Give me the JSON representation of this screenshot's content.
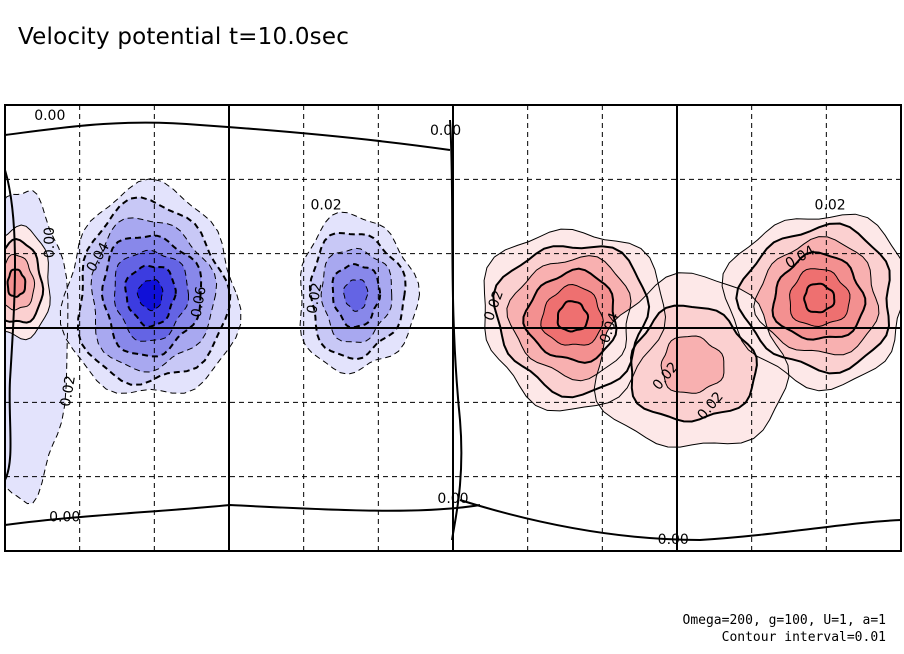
{
  "chart_data": {
    "type": "contour",
    "title": "Velocity potential t=10.0sec",
    "params_text": "Omega=200, g=100, U=1, a=1",
    "interval_text": "Contour interval=0.01",
    "contour_interval": 0.01,
    "grid": true,
    "x_divisions": 12,
    "y_divisions": 6,
    "major_x_lines": [
      3,
      6,
      9
    ],
    "major_y_lines": [
      3
    ],
    "contour_labels": [
      {
        "text": "0.00",
        "x": 0.6,
        "y": 0.15,
        "rot": 0
      },
      {
        "text": "0.00",
        "x": 5.9,
        "y": 0.35,
        "rot": 0
      },
      {
        "text": "0.02",
        "x": 4.3,
        "y": 1.35,
        "rot": 0
      },
      {
        "text": "0.00",
        "x": 0.6,
        "y": 1.85,
        "rot": -90
      },
      {
        "text": "0.04",
        "x": 1.25,
        "y": 2.05,
        "rot": -60
      },
      {
        "text": "0.06",
        "x": 2.6,
        "y": 2.65,
        "rot": -80
      },
      {
        "text": "0.02",
        "x": 4.15,
        "y": 2.6,
        "rot": -80
      },
      {
        "text": "0.02",
        "x": 0.85,
        "y": 3.85,
        "rot": -80
      },
      {
        "text": "0.02",
        "x": 6.55,
        "y": 2.7,
        "rot": -70
      },
      {
        "text": "0.04",
        "x": 8.1,
        "y": 3.0,
        "rot": -70
      },
      {
        "text": "0.02",
        "x": 8.85,
        "y": 3.65,
        "rot": -50
      },
      {
        "text": "0.02",
        "x": 9.45,
        "y": 4.05,
        "rot": -50
      },
      {
        "text": "0.02",
        "x": 11.05,
        "y": 1.35,
        "rot": 0
      },
      {
        "text": "0.04",
        "x": 10.65,
        "y": 2.05,
        "rot": -30
      },
      {
        "text": "0.00",
        "x": 6.0,
        "y": 5.3,
        "rot": 0
      },
      {
        "text": "0.00",
        "x": 0.8,
        "y": 5.55,
        "rot": 0
      },
      {
        "text": "0.00",
        "x": 8.95,
        "y": 5.85,
        "rot": 0
      }
    ],
    "extrema": [
      {
        "sign": "negative",
        "x": 1.95,
        "y": 2.55,
        "amplitude": 0.07,
        "sx": 1.1,
        "sy": 1.35
      },
      {
        "sign": "negative",
        "x": 4.7,
        "y": 2.55,
        "amplitude": 0.045,
        "sx": 0.75,
        "sy": 1.0
      },
      {
        "sign": "negative",
        "x": 0.3,
        "y": 3.2,
        "amplitude": 0.01,
        "sx": 0.5,
        "sy": 2.0
      },
      {
        "sign": "positive",
        "x": 7.6,
        "y": 2.85,
        "amplitude": 0.055,
        "sx": 1.15,
        "sy": 1.15
      },
      {
        "sign": "positive",
        "x": 10.9,
        "y": 2.6,
        "amplitude": 0.055,
        "sx": 1.15,
        "sy": 1.1
      },
      {
        "sign": "positive",
        "x": 0.15,
        "y": 2.4,
        "amplitude": 0.04,
        "sx": 0.45,
        "sy": 0.7
      },
      {
        "sign": "positive",
        "x": 9.2,
        "y": 3.5,
        "amplitude": 0.025,
        "sx": 1.2,
        "sy": 1.1
      }
    ],
    "colors": {
      "negative_scale": [
        "#e3e3fc",
        "#c8c8f6",
        "#a8a8f0",
        "#8888ea",
        "#6464e4",
        "#3c3ce0",
        "#1010d8"
      ],
      "positive_scale": [
        "#fde8e8",
        "#fbd0d0",
        "#f8b0b0",
        "#f39090",
        "#ee7070"
      ]
    }
  }
}
